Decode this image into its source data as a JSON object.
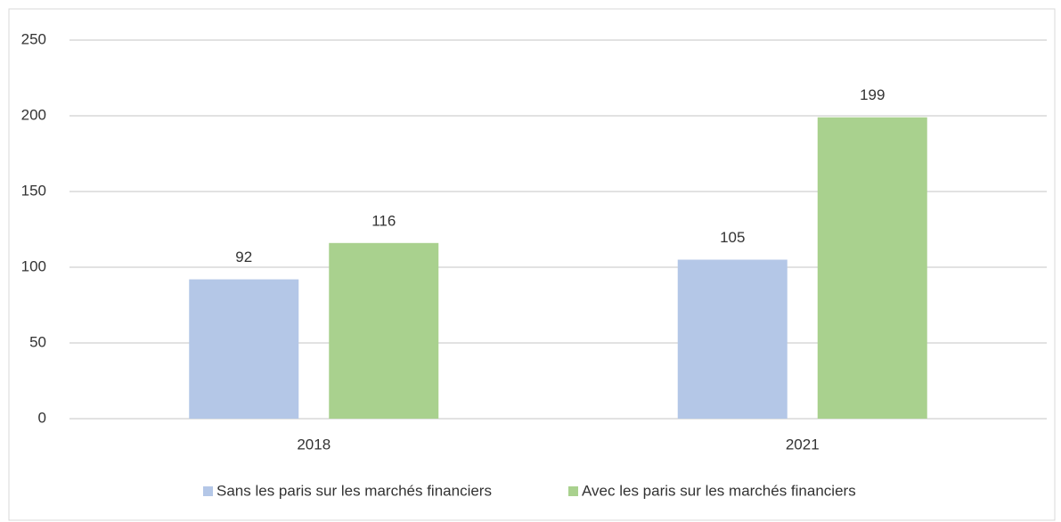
{
  "chart_data": {
    "type": "bar",
    "categories": [
      "2018",
      "2021"
    ],
    "series": [
      {
        "name": "Sans les paris sur les marchés financiers",
        "color": "#b4c7e7",
        "values": [
          92,
          105
        ]
      },
      {
        "name": "Avec les paris sur les marchés financiers",
        "color": "#a9d18e",
        "values": [
          116,
          199
        ]
      }
    ],
    "ylim": [
      0,
      250
    ],
    "yticks": [
      0,
      50,
      100,
      150,
      200,
      250
    ],
    "grid": true,
    "legend": "bottom"
  }
}
